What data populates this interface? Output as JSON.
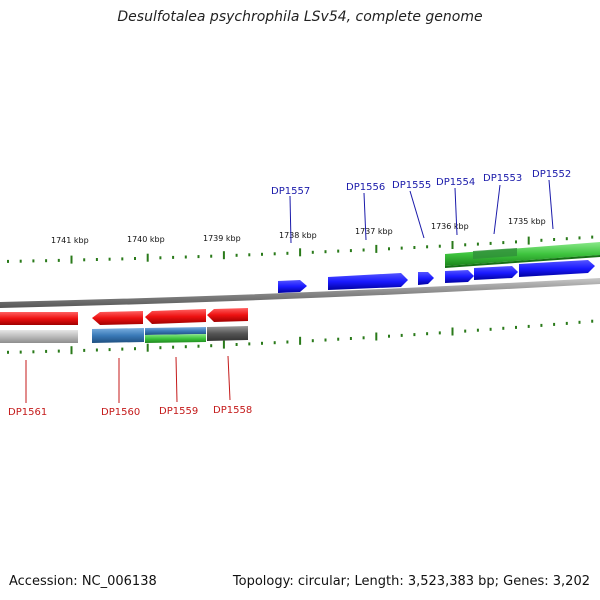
{
  "title": "Desulfotalea psychrophila LSv54, complete genome",
  "footer": {
    "accession": "Accession: NC_006138",
    "topology": "Topology: circular; Length: 3,523,383 bp; Genes: 3,202"
  },
  "scale_ticks": [
    "1741 kbp",
    "1740 kbp",
    "1739 kbp",
    "1738 kbp",
    "1737 kbp",
    "1736 kbp",
    "1735 kbp"
  ],
  "genes_top": [
    "DP1557",
    "DP1556",
    "DP1555",
    "DP1554",
    "DP1553",
    "DP1552"
  ],
  "genes_bottom": [
    "DP1561",
    "DP1560",
    "DP1559",
    "DP1558"
  ],
  "colors": {
    "forward_gene": "#1a1aff",
    "reverse_gene": "#ee1111",
    "tick": "#2a7a1a",
    "green_track": "#3ec43e",
    "blue_track": "#3a7ab8",
    "grey_track": "#bbbbbb",
    "dark_track": "#555555",
    "backbone": "#888888",
    "top_label": "#1a1aaa",
    "bottom_label": "#c41a1a"
  }
}
